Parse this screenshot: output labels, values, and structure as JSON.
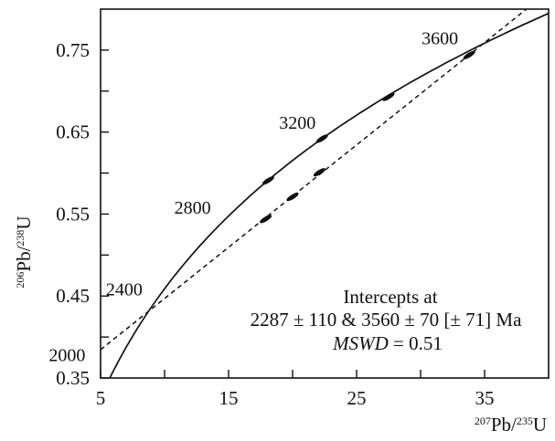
{
  "chart_data": {
    "type": "scatter",
    "title": "",
    "xlabel": {
      "sup1": "207",
      "base1": "Pb/",
      "sup2": "235",
      "base2": "U"
    },
    "ylabel": {
      "sup1": "206",
      "base1": "Pb/",
      "sup2": "238",
      "base2": "U"
    },
    "xlim": [
      5,
      40
    ],
    "ylim": [
      0.35,
      0.8
    ],
    "x_ticks": [
      5,
      15,
      25,
      35
    ],
    "x_minor_ticks": [
      10,
      20,
      30
    ],
    "y_ticks": [
      0.35,
      0.45,
      0.55,
      0.65,
      0.75
    ],
    "y_tick_labels": [
      "0.35",
      "0.45",
      "0.55",
      "0.65",
      "0.75"
    ],
    "y_minor_ticks": [
      0.4,
      0.5,
      0.6,
      0.7
    ],
    "concordia_ages_ma": [
      2000,
      2400,
      2800,
      3200,
      3600
    ],
    "concordia_age_labels": [
      "2000",
      "2400",
      "2800",
      "3200",
      "3600"
    ],
    "discordia": {
      "lower_intercept": {
        "x": 8.4,
        "y": 0.427
      },
      "upper_intercept": {
        "x": 33.7,
        "y": 0.743
      },
      "extent_x": [
        5,
        38.8
      ]
    },
    "analyses": [
      {
        "x": 18.1,
        "y": 0.591
      },
      {
        "x": 22.3,
        "y": 0.642
      },
      {
        "x": 27.5,
        "y": 0.693
      },
      {
        "x": 33.8,
        "y": 0.744
      },
      {
        "x": 17.9,
        "y": 0.544
      },
      {
        "x": 20.0,
        "y": 0.571
      },
      {
        "x": 22.1,
        "y": 0.601
      }
    ],
    "annotation": {
      "line1": "Intercepts at",
      "line2": "2287 ± 110 & 3560 ± 70 [± 71] Ma",
      "line3_italic": "MSWD",
      "line3_rest": " = 0.51"
    }
  }
}
